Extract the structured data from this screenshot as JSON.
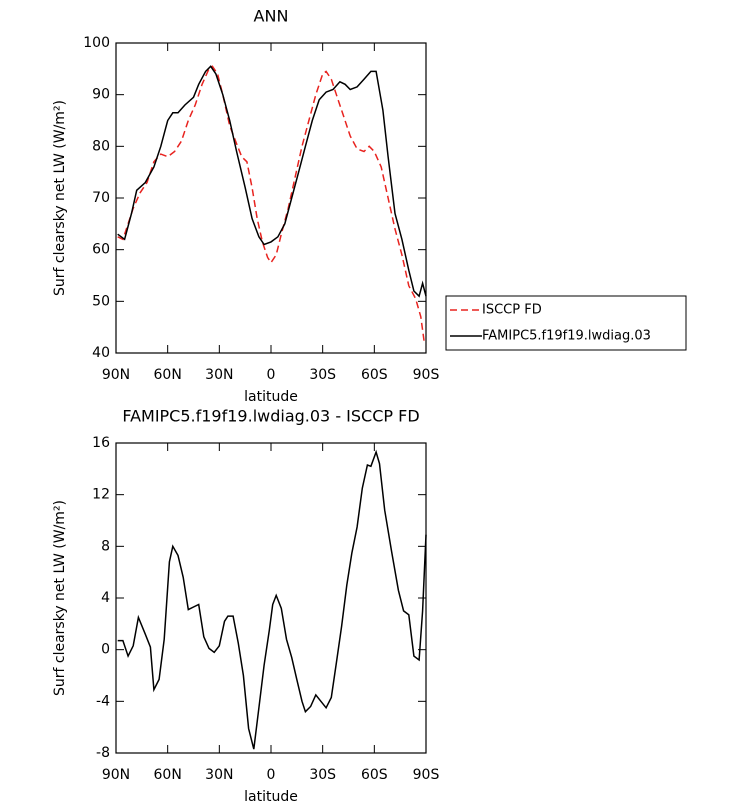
{
  "chart_data": [
    {
      "type": "line",
      "title": "ANN",
      "x_label": "latitude",
      "y_label": "Surf clearsky net LW (W/m²)",
      "xlim": [
        90,
        -90
      ],
      "ylim": [
        40,
        100
      ],
      "xticks": [
        {
          "value": 90,
          "label": "90N"
        },
        {
          "value": 60,
          "label": "60N"
        },
        {
          "value": 30,
          "label": "30N"
        },
        0,
        {
          "value": -30,
          "label": "30S"
        },
        {
          "value": -60,
          "label": "60S"
        },
        {
          "value": -90,
          "label": "90S"
        }
      ],
      "yticks": [
        40,
        50,
        60,
        70,
        80,
        90,
        100
      ],
      "legend": "right",
      "series": [
        {
          "name": "ISCCP FD",
          "color": "#e8231f",
          "dash": true,
          "x": [
            89,
            86,
            83,
            80,
            76,
            72,
            68,
            64,
            60,
            56,
            52,
            48,
            44,
            40,
            36,
            34,
            31,
            28,
            24,
            20,
            17,
            14,
            11,
            8,
            5,
            2,
            0,
            -3,
            -6,
            -10,
            -14,
            -18,
            -22,
            -26,
            -30,
            -32,
            -35,
            -38,
            -42,
            -46,
            -50,
            -54,
            -57,
            -60,
            -64,
            -68,
            -72,
            -76,
            -80,
            -84,
            -87,
            -89
          ],
          "values": [
            62.5,
            62,
            65,
            68,
            71,
            73,
            77,
            78.5,
            78,
            79,
            81,
            85,
            88,
            92,
            95,
            95.5,
            94,
            90,
            84,
            80.5,
            78,
            77,
            72,
            66,
            61.5,
            58.5,
            57.5,
            59,
            63,
            68,
            74,
            80,
            85,
            90,
            94,
            94.5,
            93,
            90,
            86,
            82,
            79.5,
            79,
            80,
            79,
            76,
            70,
            64,
            59,
            53,
            50.5,
            47,
            42
          ]
        },
        {
          "name": "FAMIPC5.f19f19.lwdiag.03",
          "color": "#000000",
          "dash": false,
          "x": [
            89,
            85,
            81,
            78,
            73,
            68,
            64,
            60,
            57,
            54,
            50,
            45,
            42,
            38,
            35,
            32,
            28,
            24,
            20,
            15,
            11,
            7,
            4,
            0,
            -4,
            -8,
            -12,
            -16,
            -20,
            -24,
            -28,
            -32,
            -36,
            -40,
            -43,
            -46,
            -50,
            -54,
            -58,
            -61,
            -65,
            -68,
            -72,
            -76,
            -80,
            -83,
            -86,
            -88,
            -90
          ],
          "values": [
            63,
            62,
            67,
            71.5,
            73,
            76,
            80,
            85,
            86.5,
            86.5,
            88,
            89.5,
            92,
            94.5,
            95.5,
            94,
            90,
            85,
            79,
            72,
            66,
            62.5,
            61,
            61.5,
            62.5,
            65,
            70,
            75,
            80,
            85,
            89,
            90.5,
            91,
            92.5,
            92,
            91,
            91.5,
            93,
            94.5,
            94.5,
            87,
            78,
            67,
            62,
            56,
            52,
            51,
            53.5,
            51
          ]
        }
      ]
    },
    {
      "type": "line",
      "title": "FAMIPC5.f19f19.lwdiag.03 - ISCCP FD",
      "x_label": "latitude",
      "y_label": "Surf clearsky net LW (W/m²)",
      "xlim": [
        90,
        -90
      ],
      "ylim": [
        -8,
        16
      ],
      "xticks": [
        {
          "value": 90,
          "label": "90N"
        },
        {
          "value": 60,
          "label": "60N"
        },
        {
          "value": 30,
          "label": "30N"
        },
        0,
        {
          "value": -30,
          "label": "30S"
        },
        {
          "value": -60,
          "label": "60S"
        },
        {
          "value": -90,
          "label": "90S"
        }
      ],
      "yticks": [
        -8,
        -4,
        0,
        4,
        8,
        12,
        16
      ],
      "series": [
        {
          "color": "#000000",
          "dash": false,
          "x": [
            89,
            86,
            83,
            80,
            77,
            73,
            70,
            68,
            65,
            62,
            59,
            57,
            54,
            51,
            48,
            45,
            42,
            39,
            36,
            33,
            30,
            27,
            25,
            22,
            19,
            16,
            13,
            10,
            7,
            4,
            1,
            -1,
            -3,
            -6,
            -9,
            -12,
            -15,
            -18,
            -20,
            -23,
            -26,
            -29,
            -32,
            -35,
            -38,
            -41,
            -44,
            -47,
            -50,
            -53,
            -56,
            -58,
            -61,
            -63,
            -66,
            -70,
            -74,
            -77,
            -80,
            -83,
            -86,
            -88,
            -90
          ],
          "values": [
            0.7,
            0.7,
            -0.5,
            0.3,
            2.5,
            1.2,
            0.2,
            -3.1,
            -2.3,
            0.8,
            6.8,
            8,
            7.3,
            5.6,
            3.1,
            3.3,
            3.5,
            1,
            0.1,
            -0.2,
            0.3,
            2.2,
            2.6,
            2.6,
            0.5,
            -2,
            -6.1,
            -7.7,
            -4.5,
            -1.2,
            1.5,
            3.5,
            4.2,
            3.2,
            0.8,
            -0.6,
            -2.3,
            -4,
            -4.8,
            -4.4,
            -3.5,
            -4,
            -4.5,
            -3.7,
            -1,
            1.8,
            5,
            7.5,
            9.5,
            12.5,
            14.3,
            14.2,
            15.3,
            14.4,
            10.8,
            7.6,
            4.6,
            3,
            2.7,
            -0.5,
            -0.8,
            3,
            8.9
          ]
        }
      ]
    }
  ]
}
